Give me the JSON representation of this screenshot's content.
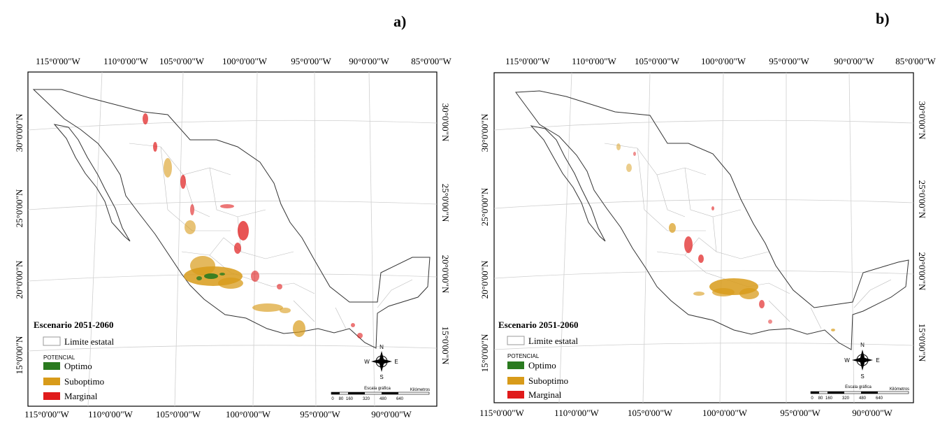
{
  "colors": {
    "optimo": "#2a7a1f",
    "suboptimo": "#d89b1a",
    "marginal": "#e01b1b",
    "state_border": "#bcbcbc",
    "outline": "#333333"
  },
  "panels": [
    {
      "letter": "a)",
      "top_ticks": [
        "115°0'00\"W",
        "110°0'00\"W",
        "105°0'00\"W",
        "100°0'00\"W",
        "95°0'00\"W",
        "90°0'00\"W",
        "85°0'00\"W"
      ],
      "bottom_ticks": [
        "115°0'00\"W",
        "110°0'00\"W",
        "105°0'00\"W",
        "100°0'00\"W",
        "95°0'00\"W",
        "90°0'00\"W"
      ],
      "lat_ticks": [
        "30°0'00\"N",
        "25°0'00\"N",
        "20°0'00\"N",
        "15°0'00\"N"
      ],
      "legend": {
        "title": "Escenario 2051-2060",
        "state_label": "Limite estatal",
        "potential_label": "POTENCIAL",
        "items": [
          "Optimo",
          "Suboptimo",
          "Marginal"
        ]
      },
      "compass": {
        "n": "N",
        "s": "S",
        "e": "E",
        "w": "W"
      },
      "scale": {
        "label": "Escala gráfica",
        "ticks": [
          "0",
          "80",
          "160",
          "320",
          "480",
          "640"
        ],
        "unit": "Kilómetros"
      }
    },
    {
      "letter": "b)",
      "top_ticks": [
        "115°0'00\"W",
        "110°0'00\"W",
        "105°0'00\"W",
        "100°0'00\"W",
        "95°0'00\"W",
        "90°0'00\"W",
        "85°0'00\"W"
      ],
      "bottom_ticks": [
        "115°0'00\"W",
        "110°0'00\"W",
        "105°0'00\"W",
        "100°0'00\"W",
        "95°0'00\"W",
        "90°0'00\"W"
      ],
      "lat_ticks": [
        "30°0'00\"N",
        "25°0'00\"N",
        "20°0'00\"N",
        "15°0'00\"N"
      ],
      "legend": {
        "title": "Escenario 2051-2060",
        "state_label": "Limite estatal",
        "potential_label": "POTENCIAL",
        "items": [
          "Optimo",
          "Suboptimo",
          "Marginal"
        ]
      },
      "compass": {
        "n": "N",
        "s": "S",
        "e": "E",
        "w": "W"
      },
      "scale": {
        "label": "Escala gráfica",
        "ticks": [
          "0",
          "80",
          "160",
          "320",
          "480",
          "640"
        ],
        "unit": "Kilómetros"
      }
    }
  ]
}
